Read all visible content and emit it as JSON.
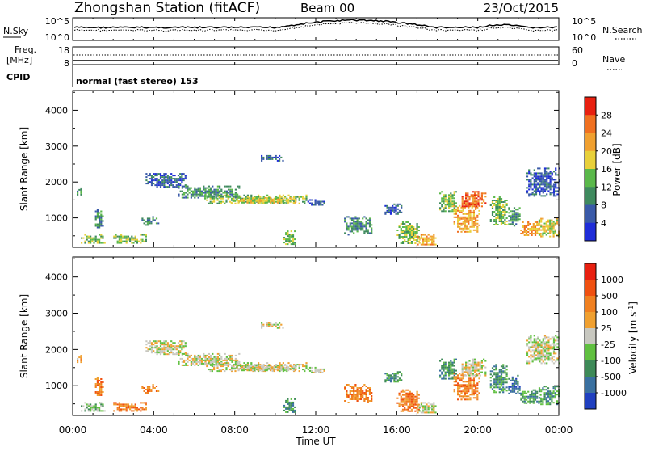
{
  "header": {
    "title": "Zhongshan Station (fitACF)",
    "beam": "Beam 00",
    "date": "23/Oct/2015"
  },
  "noise_panel": {
    "left_label": "N.Sky",
    "left_ticks": [
      "10^5",
      "10^0"
    ],
    "right_label": "N.Search",
    "right_ticks": [
      "10^5",
      "10^0"
    ]
  },
  "freq_panel": {
    "left_label_line1": "Freq.",
    "left_label_line2": "[MHz]",
    "left_ticks": [
      "18",
      "8"
    ],
    "right_label": "Nave",
    "right_ticks": [
      "60",
      "0"
    ]
  },
  "cpid": {
    "label": "CPID",
    "text": "normal (fast stereo) 153"
  },
  "xaxis": {
    "label": "Time UT",
    "ticks": [
      "00:00",
      "04:00",
      "08:00",
      "12:00",
      "16:00",
      "20:00",
      "00:00"
    ]
  },
  "chart_data": [
    {
      "type": "heatmap",
      "name": "power",
      "ylabel": "Slant Range [km]",
      "yticks": [
        "1000",
        "2000",
        "3000",
        "4000"
      ],
      "ylim": [
        180,
        4550
      ],
      "xlim": [
        0,
        24
      ],
      "colorbar_label": "Power [dB]",
      "colorbar_ticks": [
        "4",
        "8",
        "12",
        "16",
        "20",
        "24",
        "28"
      ],
      "colorbar_colors": [
        "#1f2dd8",
        "#3a5aa8",
        "#3f8a5e",
        "#5ab84a",
        "#e8d03a",
        "#f0a030",
        "#f07020",
        "#e82010"
      ],
      "regions": [
        {
          "t0": 0.2,
          "t1": 0.5,
          "r0": 1650,
          "r1": 1850,
          "level": 2
        },
        {
          "t0": 0.4,
          "t1": 1.6,
          "r0": 300,
          "r1": 550,
          "level": 3
        },
        {
          "t0": 1.1,
          "t1": 1.5,
          "r0": 700,
          "r1": 1250,
          "level": 2
        },
        {
          "t0": 2.0,
          "t1": 3.6,
          "r0": 300,
          "r1": 550,
          "level": 3
        },
        {
          "t0": 3.4,
          "t1": 4.2,
          "r0": 800,
          "r1": 1050,
          "level": 2
        },
        {
          "t0": 3.6,
          "t1": 5.6,
          "r0": 1850,
          "r1": 2250,
          "level": 1
        },
        {
          "t0": 5.2,
          "t1": 8.2,
          "r0": 1550,
          "r1": 1900,
          "level": 2
        },
        {
          "t0": 6.5,
          "t1": 11.5,
          "r0": 1400,
          "r1": 1650,
          "level": 3
        },
        {
          "t0": 7.8,
          "t1": 11.0,
          "r0": 1420,
          "r1": 1580,
          "level": 4
        },
        {
          "t0": 9.2,
          "t1": 10.4,
          "r0": 2600,
          "r1": 2750,
          "level": 1
        },
        {
          "t0": 10.4,
          "t1": 11.0,
          "r0": 280,
          "r1": 650,
          "level": 3
        },
        {
          "t0": 11.5,
          "t1": 12.4,
          "r0": 1380,
          "r1": 1520,
          "level": 1
        },
        {
          "t0": 13.4,
          "t1": 14.8,
          "r0": 550,
          "r1": 1050,
          "level": 2
        },
        {
          "t0": 15.4,
          "t1": 16.2,
          "r0": 1100,
          "r1": 1400,
          "level": 1
        },
        {
          "t0": 16.0,
          "t1": 17.1,
          "r0": 300,
          "r1": 900,
          "level": 3
        },
        {
          "t0": 17.0,
          "t1": 17.9,
          "r0": 250,
          "r1": 550,
          "level": 5
        },
        {
          "t0": 18.1,
          "t1": 18.9,
          "r0": 1200,
          "r1": 1750,
          "level": 3
        },
        {
          "t0": 18.8,
          "t1": 20.1,
          "r0": 600,
          "r1": 1400,
          "level": 5
        },
        {
          "t0": 19.2,
          "t1": 20.4,
          "r0": 1300,
          "r1": 1750,
          "level": 6
        },
        {
          "t0": 20.6,
          "t1": 21.4,
          "r0": 800,
          "r1": 1600,
          "level": 3
        },
        {
          "t0": 21.5,
          "t1": 22.1,
          "r0": 800,
          "r1": 1300,
          "level": 2
        },
        {
          "t0": 22.1,
          "t1": 23.1,
          "r0": 500,
          "r1": 900,
          "level": 5
        },
        {
          "t0": 22.4,
          "t1": 24.0,
          "r0": 1600,
          "r1": 2400,
          "level": 1
        },
        {
          "t0": 23.0,
          "t1": 24.0,
          "r0": 500,
          "r1": 1000,
          "level": 4
        }
      ]
    },
    {
      "type": "heatmap",
      "name": "velocity",
      "ylabel": "Slant Range [km]",
      "yticks": [
        "1000",
        "2000",
        "3000",
        "4000"
      ],
      "ylim": [
        180,
        4550
      ],
      "xlim": [
        0,
        24
      ],
      "colorbar_label": "Velocity [m s^-1]",
      "colorbar_ticks": [
        "1000",
        "500",
        "100",
        "25",
        "-25",
        "-100",
        "-500",
        "-1000"
      ],
      "colorbar_colors": [
        "#2040c0",
        "#3a70a0",
        "#3e8a58",
        "#60c040",
        "#c8c8c0",
        "#f0a030",
        "#f08020",
        "#f05010",
        "#e82010"
      ],
      "regions": [
        {
          "t0": 0.2,
          "t1": 0.5,
          "r0": 1650,
          "r1": 1850,
          "level": 5
        },
        {
          "t0": 0.4,
          "t1": 1.6,
          "r0": 300,
          "r1": 550,
          "level": 3
        },
        {
          "t0": 1.1,
          "t1": 1.5,
          "r0": 700,
          "r1": 1250,
          "level": 6
        },
        {
          "t0": 2.0,
          "t1": 3.6,
          "r0": 300,
          "r1": 550,
          "level": 6
        },
        {
          "t0": 3.4,
          "t1": 4.2,
          "r0": 800,
          "r1": 1050,
          "level": 6
        },
        {
          "t0": 3.6,
          "t1": 5.6,
          "r0": 1850,
          "r1": 2250,
          "level": 4
        },
        {
          "t0": 5.2,
          "t1": 8.2,
          "r0": 1550,
          "r1": 1900,
          "level": 4
        },
        {
          "t0": 6.5,
          "t1": 11.5,
          "r0": 1400,
          "r1": 1650,
          "level": 4
        },
        {
          "t0": 7.8,
          "t1": 11.0,
          "r0": 1420,
          "r1": 1580,
          "level": 4
        },
        {
          "t0": 9.2,
          "t1": 10.4,
          "r0": 2600,
          "r1": 2750,
          "level": 4
        },
        {
          "t0": 10.4,
          "t1": 11.0,
          "r0": 280,
          "r1": 650,
          "level": 2
        },
        {
          "t0": 11.5,
          "t1": 12.4,
          "r0": 1380,
          "r1": 1520,
          "level": 4
        },
        {
          "t0": 13.4,
          "t1": 14.8,
          "r0": 550,
          "r1": 1050,
          "level": 6
        },
        {
          "t0": 15.4,
          "t1": 16.2,
          "r0": 1100,
          "r1": 1400,
          "level": 2
        },
        {
          "t0": 16.0,
          "t1": 17.1,
          "r0": 300,
          "r1": 900,
          "level": 6
        },
        {
          "t0": 17.0,
          "t1": 17.9,
          "r0": 250,
          "r1": 550,
          "level": 4
        },
        {
          "t0": 18.1,
          "t1": 18.9,
          "r0": 1200,
          "r1": 1750,
          "level": 2
        },
        {
          "t0": 18.8,
          "t1": 20.1,
          "r0": 600,
          "r1": 1400,
          "level": 6
        },
        {
          "t0": 19.2,
          "t1": 20.4,
          "r0": 1300,
          "r1": 1750,
          "level": 4
        },
        {
          "t0": 20.6,
          "t1": 21.4,
          "r0": 800,
          "r1": 1600,
          "level": 2
        },
        {
          "t0": 21.5,
          "t1": 22.1,
          "r0": 800,
          "r1": 1300,
          "level": 1
        },
        {
          "t0": 22.1,
          "t1": 23.1,
          "r0": 500,
          "r1": 900,
          "level": 2
        },
        {
          "t0": 22.4,
          "t1": 24.0,
          "r0": 1600,
          "r1": 2400,
          "level": 4
        },
        {
          "t0": 23.0,
          "t1": 24.0,
          "r0": 500,
          "r1": 1000,
          "level": 2
        }
      ]
    }
  ]
}
